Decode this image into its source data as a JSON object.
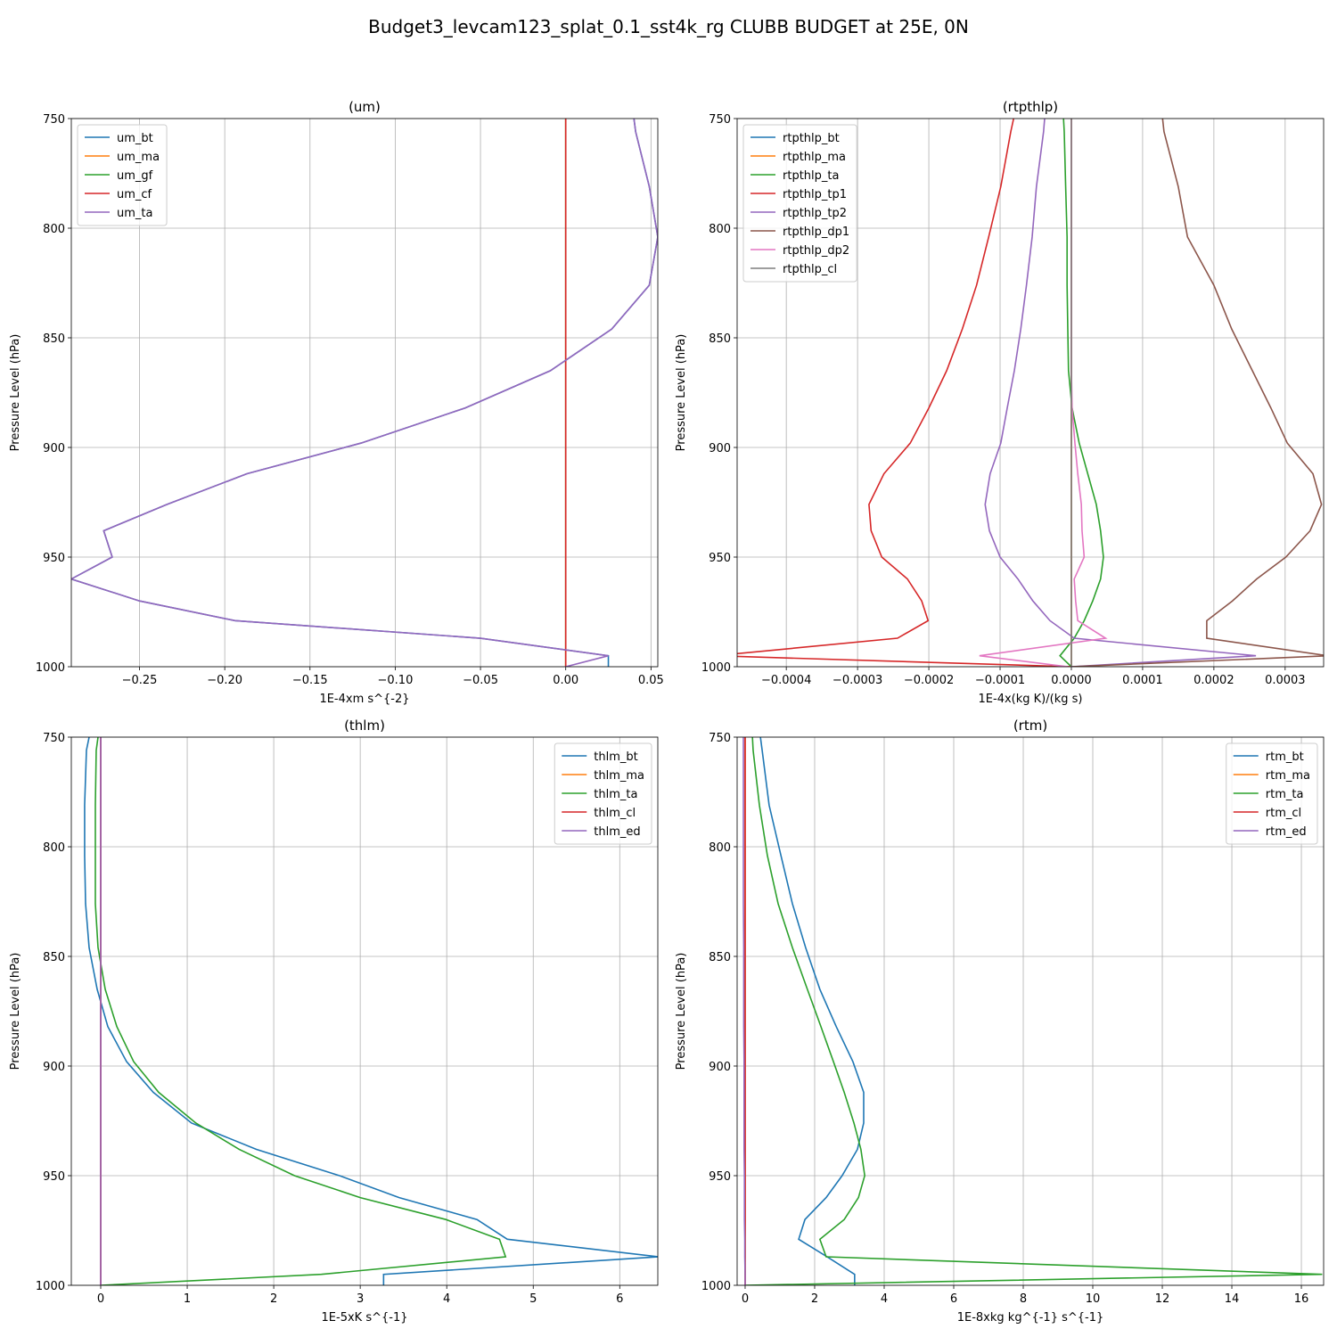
{
  "title": "Budget3_levcam123_splat_0.1_sst4k_rg CLUBB BUDGET at 25E, 0N",
  "chart_data": [
    {
      "type": "line",
      "title": "(um)",
      "x_label": "1E-4xm s^{-2}",
      "y_label": "Pressure Level (hPa)",
      "legend": "upper left",
      "grid": true,
      "xlim": [
        -0.29,
        0.054
      ],
      "ylim": [
        1000,
        750
      ],
      "xticks": [
        {
          "value": -0.25,
          "label": "−0.25"
        },
        {
          "value": -0.2,
          "label": "−0.20"
        },
        {
          "value": -0.15,
          "label": "−0.15"
        },
        {
          "value": -0.1,
          "label": "−0.10"
        },
        {
          "value": -0.05,
          "label": "−0.05"
        },
        {
          "value": 0,
          "label": "0.00"
        },
        {
          "value": 0.05,
          "label": "0.05"
        }
      ],
      "yticks": [
        750,
        800,
        850,
        900,
        950,
        1000
      ],
      "y": [
        750,
        756,
        781,
        804,
        826,
        846,
        865,
        882,
        898,
        912,
        926,
        938,
        950,
        960,
        970,
        979,
        987,
        995,
        1000
      ],
      "series": [
        {
          "name": "um_bt",
          "color": "#1f77b4",
          "values": [
            0.04,
            0.041,
            0.049,
            0.054,
            0.049,
            0.027,
            -0.009,
            -0.059,
            -0.12,
            -0.187,
            -0.234,
            -0.271,
            -0.266,
            -0.29,
            -0.25,
            -0.194,
            -0.05,
            0.025,
            0.025
          ]
        },
        {
          "name": "um_ma",
          "color": "#ff7f0e",
          "values": [
            0,
            0,
            0,
            0,
            0,
            0,
            0,
            0,
            0,
            0,
            0,
            0,
            0,
            0,
            0,
            0,
            0,
            0,
            0
          ]
        },
        {
          "name": "um_gf",
          "color": "#2ca02c",
          "values": [
            0,
            0,
            0,
            0,
            0,
            0,
            0,
            0,
            0,
            0,
            0,
            0,
            0,
            0,
            0,
            0,
            0,
            0,
            0
          ]
        },
        {
          "name": "um_cf",
          "color": "#d62728",
          "values": [
            0,
            0,
            0,
            0,
            0,
            0,
            0,
            0,
            0,
            0,
            0,
            0,
            0,
            0,
            0,
            0,
            0,
            0,
            0
          ]
        },
        {
          "name": "um_ta",
          "color": "#9467bd",
          "values": [
            0.04,
            0.041,
            0.049,
            0.054,
            0.049,
            0.027,
            -0.009,
            -0.059,
            -0.12,
            -0.187,
            -0.234,
            -0.271,
            -0.266,
            -0.29,
            -0.25,
            -0.194,
            -0.05,
            0.025,
            0
          ]
        }
      ]
    },
    {
      "type": "line",
      "title": "(rtpthlp)",
      "x_label": "1E-4x(kg K)/(kg s)",
      "y_label": "Pressure Level (hPa)",
      "legend": "upper left",
      "grid": true,
      "xlim": [
        -0.000469,
        0.000354
      ],
      "ylim": [
        1000,
        750
      ],
      "xticks": [
        {
          "value": -0.0004,
          "label": "−0.0004"
        },
        {
          "value": -0.0003,
          "label": "−0.0003"
        },
        {
          "value": -0.0002,
          "label": "−0.0002"
        },
        {
          "value": -0.0001,
          "label": "−0.0001"
        },
        {
          "value": 0,
          "label": "0.0000"
        },
        {
          "value": 0.0001,
          "label": "0.0001"
        },
        {
          "value": 0.0002,
          "label": "0.0002"
        },
        {
          "value": 0.0003,
          "label": "0.0003"
        }
      ],
      "yticks": [
        750,
        800,
        850,
        900,
        950,
        1000
      ],
      "y": [
        750,
        756,
        781,
        804,
        826,
        846,
        865,
        882,
        898,
        912,
        926,
        938,
        950,
        960,
        970,
        979,
        987,
        995,
        1000
      ],
      "series": [
        {
          "name": "rtpthlp_bt",
          "color": "#1f77b4",
          "values": [
            0,
            0,
            0,
            0,
            0,
            0,
            0,
            0,
            0,
            0,
            0,
            0,
            0,
            0,
            0,
            0,
            0,
            0,
            0
          ]
        },
        {
          "name": "rtpthlp_ma",
          "color": "#ff7f0e",
          "values": [
            0,
            0,
            0,
            0,
            0,
            0,
            0,
            0,
            0,
            0,
            0,
            0,
            0,
            0,
            0,
            0,
            0,
            0,
            0
          ]
        },
        {
          "name": "rtpthlp_ta",
          "color": "#2ca02c",
          "values": [
            -1.1e-05,
            -1e-05,
            -8e-06,
            -6e-06,
            -6e-06,
            -5e-06,
            -4e-06,
            1e-06,
            1.1e-05,
            2.3e-05,
            3.5e-05,
            4.1e-05,
            4.5e-05,
            4.1e-05,
            3e-05,
            1.8e-05,
            4e-06,
            -1.6e-05,
            0
          ]
        },
        {
          "name": "rtpthlp_tp1",
          "color": "#d62728",
          "values": [
            -8.1e-05,
            -8.5e-05,
            -9.9e-05,
            -0.000116,
            -0.000133,
            -0.000153,
            -0.000175,
            -0.0002,
            -0.000226,
            -0.000263,
            -0.000284,
            -0.000281,
            -0.000266,
            -0.00023,
            -0.00021,
            -0.000201,
            -0.000244,
            -0.0005,
            0
          ]
        },
        {
          "name": "rtpthlp_tp2",
          "color": "#9467bd",
          "values": [
            -3.75e-05,
            -3.9e-05,
            -4.9e-05,
            -5.5e-05,
            -6.3e-05,
            -7.1e-05,
            -8e-05,
            -9e-05,
            -9.9e-05,
            -0.000114,
            -0.000121,
            -0.000115,
            -0.0001,
            -7.5e-05,
            -5.4e-05,
            -3e-05,
            4e-06,
            0.000259,
            0
          ]
        },
        {
          "name": "rtpthlp_dp1",
          "color": "#8c564b",
          "values": [
            0.000128,
            0.00013,
            0.00015,
            0.000163,
            0.0002,
            0.000225,
            0.000254,
            0.00028,
            0.000303,
            0.000339,
            0.000351,
            0.000335,
            0.000301,
            0.00026,
            0.000226,
            0.00019,
            0.00019,
            0.00036,
            0
          ]
        },
        {
          "name": "rtpthlp_dp2",
          "color": "#e377c2",
          "values": [
            0,
            0,
            0,
            0,
            0,
            0,
            0,
            1e-06,
            5e-06,
            9e-06,
            1.4e-05,
            1.5e-05,
            1.8e-05,
            4e-06,
            6e-06,
            9e-06,
            4.8e-05,
            -0.000129,
            -5e-06
          ]
        },
        {
          "name": "rtpthlp_cl",
          "color": "#7f7f7f",
          "values": [
            0,
            0,
            0,
            0,
            0,
            0,
            0,
            0,
            0,
            0,
            0,
            0,
            0,
            0,
            0,
            0,
            0,
            0,
            0
          ]
        }
      ]
    },
    {
      "type": "line",
      "title": "(thlm)",
      "x_label": "1E-5xK s^{-1}",
      "y_label": "Pressure Level (hPa)",
      "legend": "upper right",
      "grid": true,
      "xlim": [
        -0.34,
        6.44
      ],
      "ylim": [
        1000,
        750
      ],
      "xticks": [
        0,
        1,
        2,
        3,
        4,
        5,
        6
      ],
      "yticks": [
        750,
        800,
        850,
        900,
        950,
        1000
      ],
      "y": [
        750,
        756,
        781,
        804,
        826,
        846,
        865,
        882,
        898,
        912,
        926,
        938,
        950,
        960,
        970,
        979,
        987,
        995,
        1000
      ],
      "series": [
        {
          "name": "thlm_bt",
          "color": "#1f77b4",
          "values": [
            -0.134,
            -0.165,
            -0.186,
            -0.186,
            -0.175,
            -0.134,
            -0.041,
            0.082,
            0.299,
            0.608,
            1.05,
            1.8,
            2.76,
            3.45,
            4.35,
            4.7,
            6.45,
            3.27,
            3.27
          ]
        },
        {
          "name": "thlm_ma",
          "color": "#ff7f0e",
          "values": [
            0,
            0,
            0,
            0,
            0,
            0,
            0,
            0,
            0,
            0,
            0,
            0,
            0,
            0,
            0,
            0,
            0,
            0,
            0
          ]
        },
        {
          "name": "thlm_ta",
          "color": "#2ca02c",
          "values": [
            -0.031,
            -0.052,
            -0.062,
            -0.062,
            -0.062,
            -0.031,
            0.052,
            0.186,
            0.381,
            0.67,
            1.1,
            1.6,
            2.24,
            3.0,
            3.99,
            4.61,
            4.68,
            2.55,
            0
          ]
        },
        {
          "name": "thlm_cl",
          "color": "#d62728",
          "values": [
            0,
            0,
            0,
            0,
            0,
            0,
            0,
            0,
            0,
            0,
            0,
            0,
            0,
            0,
            0,
            0,
            0,
            0,
            0
          ]
        },
        {
          "name": "thlm_ed",
          "color": "#9467bd",
          "values": [
            0,
            0,
            0,
            0,
            0,
            0,
            0,
            0,
            0,
            0,
            0,
            0,
            0,
            0,
            0,
            0,
            0,
            0,
            0
          ]
        }
      ]
    },
    {
      "type": "line",
      "title": "(rtm)",
      "x_label": "1E-8xkg kg^{-1} s^{-1}",
      "y_label": "Pressure Level (hPa)",
      "legend": "upper right",
      "grid": true,
      "xlim": [
        -0.23,
        16.64
      ],
      "ylim": [
        1000,
        750
      ],
      "xticks": [
        0,
        2,
        4,
        6,
        8,
        10,
        12,
        14,
        16
      ],
      "yticks": [
        750,
        800,
        850,
        900,
        950,
        1000
      ],
      "y": [
        750,
        756,
        781,
        804,
        826,
        846,
        865,
        882,
        898,
        912,
        926,
        938,
        950,
        960,
        970,
        979,
        987,
        995,
        1000
      ],
      "series": [
        {
          "name": "rtm_bt",
          "color": "#1f77b4",
          "values": [
            0.44,
            0.49,
            0.69,
            1.03,
            1.36,
            1.74,
            2.15,
            2.62,
            3.1,
            3.41,
            3.41,
            3.23,
            2.79,
            2.33,
            1.72,
            1.54,
            2.36,
            3.15,
            3.15
          ]
        },
        {
          "name": "rtm_ma",
          "color": "#ff7f0e",
          "values": [
            0,
            0,
            0,
            0,
            0,
            0,
            0,
            0,
            0,
            0,
            0,
            0,
            0,
            0,
            0,
            0,
            0,
            0,
            0
          ]
        },
        {
          "name": "rtm_ta",
          "color": "#2ca02c",
          "values": [
            0.21,
            0.23,
            0.41,
            0.64,
            0.95,
            1.36,
            1.79,
            2.18,
            2.54,
            2.85,
            3.13,
            3.33,
            3.44,
            3.26,
            2.85,
            2.15,
            2.33,
            16.6,
            0
          ]
        },
        {
          "name": "rtm_cl",
          "color": "#d62728",
          "values": [
            0,
            0,
            0,
            0,
            0,
            0,
            0,
            0,
            0,
            0,
            0,
            0,
            0,
            0,
            0,
            0,
            0,
            0,
            0
          ]
        },
        {
          "name": "rtm_ed",
          "color": "#9467bd",
          "values": [
            -0.05,
            -0.05,
            -0.05,
            -0.05,
            -0.05,
            -0.04,
            -0.04,
            -0.04,
            -0.03,
            -0.03,
            -0.03,
            -0.03,
            -0.02,
            -0.02,
            -0.02,
            -0.01,
            -0.01,
            0,
            0
          ]
        }
      ]
    }
  ]
}
